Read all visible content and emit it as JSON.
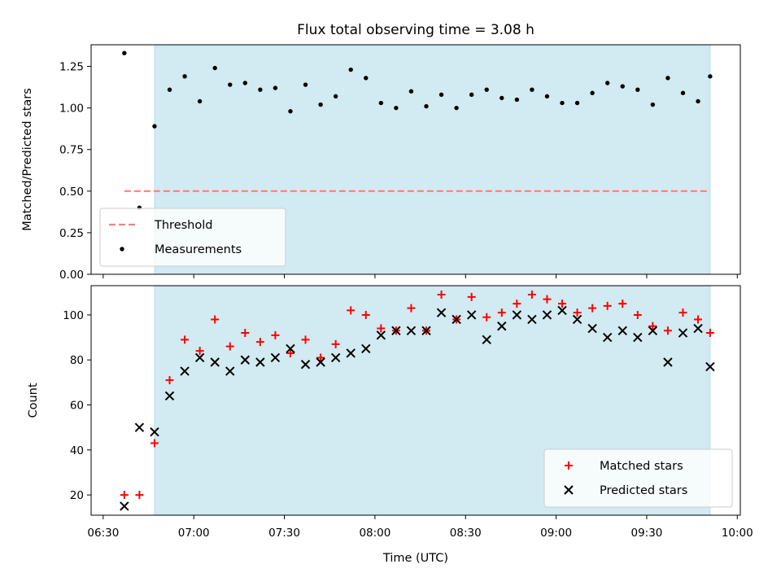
{
  "chart_data": [
    {
      "type": "scatter",
      "title": "Flux total observing time = 3.08 h",
      "xlabel": "",
      "ylabel": "Matched/Predicted stars",
      "x_range": [
        "06:26",
        "10:01"
      ],
      "ylim": [
        0,
        1.38
      ],
      "y_ticks": [
        "0.00",
        "0.25",
        "0.50",
        "0.75",
        "1.00",
        "1.25"
      ],
      "shaded_span": {
        "from": "06:47",
        "to": "09:51",
        "color": "#add8e6"
      },
      "threshold": {
        "name": "Threshold",
        "value": 0.5,
        "from": "06:37",
        "to": "09:51",
        "color": "#ff7f7f",
        "style": "dashed"
      },
      "legend_location": "lower-left",
      "series": [
        {
          "name": "Measurements",
          "marker": "dot",
          "color": "#000000",
          "x": [
            "06:37",
            "06:42",
            "06:47",
            "06:52",
            "06:57",
            "07:02",
            "07:07",
            "07:12",
            "07:17",
            "07:22",
            "07:27",
            "07:32",
            "07:37",
            "07:42",
            "07:47",
            "07:52",
            "07:57",
            "08:02",
            "08:07",
            "08:12",
            "08:17",
            "08:22",
            "08:27",
            "08:32",
            "08:37",
            "08:42",
            "08:47",
            "08:52",
            "08:57",
            "09:02",
            "09:07",
            "09:12",
            "09:17",
            "09:22",
            "09:27",
            "09:32",
            "09:37",
            "09:42",
            "09:47",
            "09:51"
          ],
          "y": [
            1.33,
            0.4,
            0.89,
            1.11,
            1.19,
            1.04,
            1.24,
            1.14,
            1.15,
            1.11,
            1.12,
            0.98,
            1.14,
            1.02,
            1.07,
            1.23,
            1.18,
            1.03,
            1.0,
            1.1,
            1.01,
            1.08,
            1.0,
            1.08,
            1.11,
            1.06,
            1.05,
            1.11,
            1.07,
            1.03,
            1.03,
            1.09,
            1.15,
            1.13,
            1.11,
            1.02,
            1.18,
            1.09,
            1.04,
            1.19
          ]
        }
      ]
    },
    {
      "type": "scatter",
      "title": "",
      "xlabel": "Time (UTC)",
      "ylabel": "Count",
      "x_range": [
        "06:26",
        "10:01"
      ],
      "x_ticks": [
        "06:30",
        "07:00",
        "07:30",
        "08:00",
        "08:30",
        "09:00",
        "09:30",
        "10:00"
      ],
      "ylim": [
        11,
        113
      ],
      "y_ticks": [
        "20",
        "40",
        "60",
        "80",
        "100"
      ],
      "shaded_span": {
        "from": "06:47",
        "to": "09:51",
        "color": "#add8e6"
      },
      "legend_location": "lower-right",
      "series": [
        {
          "name": "Matched stars",
          "marker": "plus",
          "color": "#ff0000",
          "x": [
            "06:37",
            "06:42",
            "06:47",
            "06:52",
            "06:57",
            "07:02",
            "07:07",
            "07:12",
            "07:17",
            "07:22",
            "07:27",
            "07:32",
            "07:37",
            "07:42",
            "07:47",
            "07:52",
            "07:57",
            "08:02",
            "08:07",
            "08:12",
            "08:17",
            "08:22",
            "08:27",
            "08:32",
            "08:37",
            "08:42",
            "08:47",
            "08:52",
            "08:57",
            "09:02",
            "09:07",
            "09:12",
            "09:17",
            "09:22",
            "09:27",
            "09:32",
            "09:37",
            "09:42",
            "09:47",
            "09:51"
          ],
          "y": [
            20,
            20,
            43,
            71,
            89,
            84,
            98,
            86,
            92,
            88,
            91,
            83,
            89,
            81,
            87,
            102,
            100,
            94,
            93,
            103,
            93,
            109,
            98,
            108,
            99,
            101,
            105,
            109,
            107,
            105,
            101,
            103,
            104,
            105,
            100,
            95,
            93,
            101,
            98,
            92
          ]
        },
        {
          "name": "Predicted stars",
          "marker": "x",
          "color": "#000000",
          "x": [
            "06:37",
            "06:42",
            "06:47",
            "06:52",
            "06:57",
            "07:02",
            "07:07",
            "07:12",
            "07:17",
            "07:22",
            "07:27",
            "07:32",
            "07:37",
            "07:42",
            "07:47",
            "07:52",
            "07:57",
            "08:02",
            "08:07",
            "08:12",
            "08:17",
            "08:22",
            "08:27",
            "08:32",
            "08:37",
            "08:42",
            "08:47",
            "08:52",
            "08:57",
            "09:02",
            "09:07",
            "09:12",
            "09:17",
            "09:22",
            "09:27",
            "09:32",
            "09:37",
            "09:42",
            "09:47",
            "09:51"
          ],
          "y": [
            15,
            50,
            48,
            64,
            75,
            81,
            79,
            75,
            80,
            79,
            81,
            85,
            78,
            79,
            81,
            83,
            85,
            91,
            93,
            93,
            93,
            101,
            98,
            100,
            89,
            95,
            100,
            98,
            100,
            102,
            98,
            94,
            90,
            93,
            90,
            93,
            79,
            92,
            94,
            77
          ]
        }
      ]
    }
  ]
}
